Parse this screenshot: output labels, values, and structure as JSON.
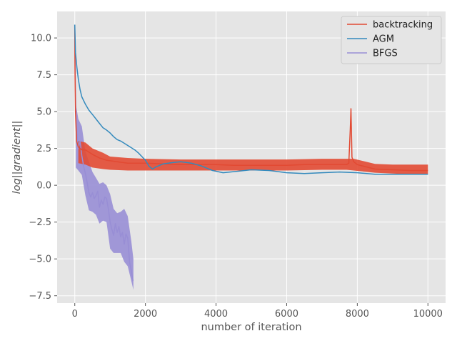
{
  "chart_data": {
    "type": "line",
    "title": "",
    "xlabel": "number of iteration",
    "ylabel": "log||gradient||",
    "xlim": [
      -500,
      10500
    ],
    "ylim": [
      -8.0,
      11.8
    ],
    "xticks": [
      0,
      2000,
      4000,
      6000,
      8000,
      10000
    ],
    "yticks": [
      -7.5,
      -5.0,
      -2.5,
      0.0,
      2.5,
      5.0,
      7.5,
      10.0
    ],
    "xtick_labels": [
      "0",
      "2000",
      "4000",
      "6000",
      "8000",
      "10000"
    ],
    "ytick_labels": [
      "−7.5",
      "−5.0",
      "−2.5",
      "0.0",
      "2.5",
      "5.0",
      "7.5",
      "10.0"
    ],
    "grid": true,
    "legend_position": "top-right",
    "colors": {
      "background": "#e5e5e5",
      "grid": "#ffffff",
      "backtracking": "#e24a33",
      "AGM": "#348abd",
      "BFGS": "#988ed5"
    },
    "series": [
      {
        "name": "backtracking",
        "color": "#e24a33",
        "points": [
          [
            0,
            10.9
          ],
          [
            5,
            8.0
          ],
          [
            20,
            5.0
          ],
          [
            50,
            3.0
          ],
          [
            100,
            2.6
          ],
          [
            200,
            2.4
          ],
          [
            300,
            2.4
          ],
          [
            500,
            2.1
          ],
          [
            700,
            1.85
          ],
          [
            900,
            1.7
          ],
          [
            1200,
            1.6
          ],
          [
            1500,
            1.5
          ],
          [
            2000,
            1.5
          ],
          [
            2500,
            1.45
          ],
          [
            3000,
            1.4
          ],
          [
            3500,
            1.4
          ],
          [
            4000,
            1.4
          ],
          [
            4500,
            1.35
          ],
          [
            5000,
            1.35
          ],
          [
            5500,
            1.35
          ],
          [
            6000,
            1.35
          ],
          [
            6500,
            1.4
          ],
          [
            7000,
            1.4
          ],
          [
            7500,
            1.4
          ],
          [
            7700,
            1.4
          ],
          [
            7760,
            1.5
          ],
          [
            7800,
            3.8
          ],
          [
            7820,
            5.2
          ],
          [
            7850,
            1.9
          ],
          [
            7900,
            1.6
          ],
          [
            8000,
            1.4
          ],
          [
            8500,
            1.1
          ],
          [
            9000,
            1.05
          ],
          [
            9500,
            1.0
          ],
          [
            10000,
            1.0
          ]
        ],
        "band": [
          [
            100,
            1.5,
            3.0
          ],
          [
            300,
            1.4,
            2.9
          ],
          [
            500,
            1.2,
            2.5
          ],
          [
            800,
            1.1,
            2.2
          ],
          [
            1000,
            1.05,
            1.95
          ],
          [
            1500,
            1.0,
            1.85
          ],
          [
            2000,
            1.0,
            1.8
          ],
          [
            3000,
            1.0,
            1.75
          ],
          [
            4000,
            1.0,
            1.75
          ],
          [
            5000,
            1.0,
            1.75
          ],
          [
            6000,
            1.0,
            1.75
          ],
          [
            7000,
            1.05,
            1.8
          ],
          [
            7700,
            1.05,
            1.8
          ],
          [
            7900,
            1.0,
            1.8
          ],
          [
            8500,
            0.85,
            1.45
          ],
          [
            9000,
            0.8,
            1.4
          ],
          [
            9500,
            0.75,
            1.4
          ],
          [
            10000,
            0.75,
            1.4
          ]
        ]
      },
      {
        "name": "AGM",
        "color": "#348abd",
        "points": [
          [
            0,
            10.9
          ],
          [
            20,
            9.0
          ],
          [
            60,
            8.0
          ],
          [
            100,
            7.2
          ],
          [
            150,
            6.5
          ],
          [
            200,
            6.0
          ],
          [
            300,
            5.5
          ],
          [
            400,
            5.1
          ],
          [
            500,
            4.8
          ],
          [
            600,
            4.5
          ],
          [
            700,
            4.2
          ],
          [
            800,
            3.9
          ],
          [
            900,
            3.75
          ],
          [
            1000,
            3.55
          ],
          [
            1100,
            3.3
          ],
          [
            1200,
            3.1
          ],
          [
            1300,
            3.0
          ],
          [
            1400,
            2.85
          ],
          [
            1500,
            2.7
          ],
          [
            1600,
            2.55
          ],
          [
            1700,
            2.4
          ],
          [
            1800,
            2.2
          ],
          [
            1900,
            1.95
          ],
          [
            2000,
            1.7
          ],
          [
            2100,
            1.3
          ],
          [
            2200,
            1.1
          ],
          [
            2300,
            1.25
          ],
          [
            2500,
            1.45
          ],
          [
            2800,
            1.55
          ],
          [
            3000,
            1.6
          ],
          [
            3300,
            1.5
          ],
          [
            3600,
            1.3
          ],
          [
            3900,
            1.0
          ],
          [
            4200,
            0.85
          ],
          [
            4600,
            0.95
          ],
          [
            5000,
            1.05
          ],
          [
            5500,
            1.0
          ],
          [
            6000,
            0.85
          ],
          [
            6500,
            0.8
          ],
          [
            7000,
            0.85
          ],
          [
            7500,
            0.9
          ],
          [
            8000,
            0.85
          ],
          [
            8500,
            0.75
          ],
          [
            9000,
            0.75
          ],
          [
            9500,
            0.75
          ],
          [
            10000,
            0.75
          ]
        ]
      },
      {
        "name": "BFGS",
        "color": "#988ed5",
        "points": [
          [
            0,
            10.9
          ],
          [
            15,
            7.0
          ],
          [
            30,
            5.0
          ],
          [
            60,
            3.5
          ],
          [
            100,
            2.5
          ],
          [
            150,
            3.0
          ],
          [
            200,
            2.0
          ],
          [
            250,
            1.3
          ],
          [
            300,
            0.8
          ],
          [
            350,
            0.2
          ],
          [
            400,
            -0.5
          ],
          [
            450,
            -0.8
          ],
          [
            500,
            -0.5
          ],
          [
            550,
            -0.9
          ],
          [
            600,
            -0.7
          ],
          [
            650,
            -0.4
          ],
          [
            700,
            -1.5
          ],
          [
            750,
            -1.0
          ],
          [
            800,
            -1.3
          ],
          [
            850,
            -0.8
          ],
          [
            900,
            -0.9
          ],
          [
            950,
            -1.6
          ],
          [
            1000,
            -2.5
          ],
          [
            1050,
            -3.0
          ],
          [
            1100,
            -3.4
          ],
          [
            1150,
            -2.6
          ],
          [
            1200,
            -3.2
          ],
          [
            1250,
            -2.8
          ],
          [
            1300,
            -3.5
          ],
          [
            1350,
            -3.2
          ],
          [
            1400,
            -4.0
          ],
          [
            1450,
            -3.3
          ],
          [
            1500,
            -3.6
          ],
          [
            1550,
            -5.2
          ],
          [
            1600,
            -5.8
          ],
          [
            1650,
            -6.5
          ]
        ],
        "band": [
          [
            30,
            1.2,
            5.5
          ],
          [
            100,
            1.0,
            4.5
          ],
          [
            200,
            0.7,
            4.0
          ],
          [
            300,
            -0.7,
            2.3
          ],
          [
            400,
            -1.7,
            1.6
          ],
          [
            500,
            -1.8,
            0.9
          ],
          [
            600,
            -2.0,
            0.5
          ],
          [
            700,
            -2.6,
            0.1
          ],
          [
            800,
            -2.4,
            0.2
          ],
          [
            900,
            -2.5,
            0.0
          ],
          [
            1000,
            -4.3,
            -0.6
          ],
          [
            1100,
            -4.6,
            -1.6
          ],
          [
            1200,
            -4.6,
            -1.9
          ],
          [
            1300,
            -4.6,
            -1.8
          ],
          [
            1400,
            -5.2,
            -1.6
          ],
          [
            1500,
            -5.5,
            -2.1
          ],
          [
            1600,
            -6.5,
            -3.8
          ],
          [
            1660,
            -7.1,
            -5.0
          ]
        ]
      }
    ]
  }
}
